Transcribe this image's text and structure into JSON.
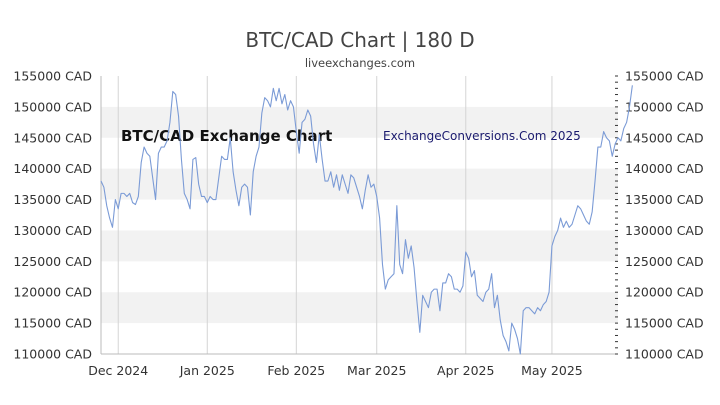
{
  "header": {
    "title": "BTC/CAD Chart | 180 D",
    "subtitle": "liveexchanges.com"
  },
  "watermarks": {
    "left": "BTC/CAD Exchange Chart",
    "right": "ExchangeConversions.Com 2025"
  },
  "colors": {
    "line": "#7b9bd6",
    "band": "#f2f2f2",
    "grid": "#d4d4d4",
    "text": "#333333"
  },
  "chart_data": {
    "type": "line",
    "title": "BTC/CAD Chart | 180 D",
    "xlabel": "",
    "ylabel": "",
    "ylim": [
      110000,
      155000
    ],
    "xlim": [
      0,
      180
    ],
    "grid": true,
    "y_ticks": [
      {
        "value": 155000,
        "label": "155000 CAD"
      },
      {
        "value": 150000,
        "label": "150000 CAD"
      },
      {
        "value": 145000,
        "label": "145000 CAD"
      },
      {
        "value": 140000,
        "label": "140000 CAD"
      },
      {
        "value": 135000,
        "label": "135000 CAD"
      },
      {
        "value": 130000,
        "label": "130000 CAD"
      },
      {
        "value": 125000,
        "label": "125000 CAD"
      },
      {
        "value": 120000,
        "label": "120000 CAD"
      },
      {
        "value": 115000,
        "label": "115000 CAD"
      },
      {
        "value": 110000,
        "label": "110000 CAD"
      }
    ],
    "x_ticks": [
      {
        "index": 6,
        "label": "Dec 2024"
      },
      {
        "index": 37,
        "label": "Jan 2025"
      },
      {
        "index": 68,
        "label": "Feb 2025"
      },
      {
        "index": 96,
        "label": "Mar 2025"
      },
      {
        "index": 127,
        "label": "Apr 2025"
      },
      {
        "index": 157,
        "label": "May 2025"
      }
    ],
    "series": [
      {
        "values": [
          138000,
          137000,
          134000,
          132000,
          130500,
          135000,
          133500,
          136000,
          136000,
          135500,
          136000,
          134500,
          134200,
          135500,
          141000,
          143500,
          142500,
          142000,
          138500,
          135000,
          142500,
          143500,
          143500,
          144500,
          147500,
          152500,
          152000,
          148500,
          141500,
          136000,
          135000,
          133500,
          141500,
          141800,
          137500,
          135500,
          135500,
          134500,
          135500,
          135000,
          135000,
          138500,
          142000,
          141500,
          141500,
          145000,
          139500,
          136500,
          134000,
          137000,
          137500,
          137000,
          132500,
          139500,
          142000,
          143500,
          149000,
          151500,
          151000,
          150000,
          153000,
          151000,
          153000,
          150500,
          152000,
          149500,
          151000,
          150000,
          146000,
          142500,
          147500,
          148000,
          149500,
          148500,
          144000,
          141000,
          145500,
          141500,
          138000,
          138000,
          139500,
          137000,
          139000,
          136500,
          139000,
          137500,
          136000,
          139000,
          138500,
          137000,
          135500,
          133500,
          136500,
          139000,
          137000,
          137500,
          135500,
          132000,
          124500,
          120500,
          122000,
          122500,
          123000,
          134000,
          124500,
          123000,
          128500,
          125500,
          127500,
          124000,
          118500,
          113500,
          119500,
          118500,
          117500,
          120000,
          120500,
          120500,
          117000,
          121500,
          121500,
          123000,
          122500,
          120500,
          120500,
          120000,
          121000,
          126500,
          125500,
          122500,
          123500,
          119500,
          119000,
          118500,
          120000,
          120500,
          123000,
          117500,
          119500,
          115500,
          113000,
          112000,
          110500,
          115000,
          114000,
          112500,
          110000,
          117000,
          117500,
          117500,
          117000,
          116500,
          117500,
          117000,
          118000,
          118500,
          120000,
          127500,
          129000,
          130000,
          132000,
          130500,
          131500,
          130500,
          131000,
          132500,
          134000,
          133500,
          132500,
          131500,
          131000,
          133000,
          138000,
          143500,
          143500,
          146000,
          145000,
          144500,
          142000,
          144000,
          145000,
          144500,
          146500,
          147500,
          150000,
          153500
        ]
      }
    ]
  }
}
